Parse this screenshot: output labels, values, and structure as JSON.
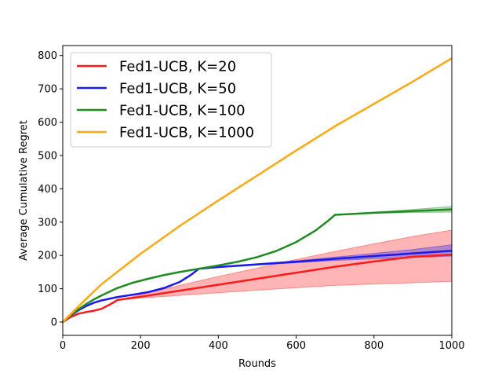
{
  "chart_data": {
    "type": "line",
    "title": "",
    "xlabel": "Rounds",
    "ylabel": "Average Cumulative Regret",
    "xlim": [
      0,
      1000
    ],
    "ylim": [
      -40,
      830
    ],
    "xticks": [
      0,
      200,
      400,
      600,
      800,
      1000
    ],
    "yticks": [
      0,
      100,
      200,
      300,
      400,
      500,
      600,
      700,
      800
    ],
    "grid": false,
    "legend_position": "upper-left",
    "series": [
      {
        "name": "Fed1-UCB, K=20",
        "color": "#ff1a1a",
        "x": [
          0,
          20,
          40,
          60,
          80,
          100,
          120,
          135,
          140,
          200,
          300,
          400,
          500,
          600,
          700,
          800,
          900,
          1000
        ],
        "y": [
          0,
          15,
          25,
          30,
          34,
          40,
          52,
          62,
          66,
          76,
          94,
          112,
          130,
          148,
          166,
          182,
          196,
          202
        ],
        "band_lower": [
          0,
          15,
          25,
          30,
          34,
          40,
          52,
          62,
          66,
          72,
          80,
          88,
          96,
          103,
          110,
          114,
          118,
          122
        ],
        "band_upper": [
          0,
          15,
          25,
          30,
          34,
          40,
          52,
          62,
          66,
          82,
          110,
          137,
          162,
          188,
          212,
          235,
          257,
          276
        ]
      },
      {
        "name": "Fed1-UCB, K=50",
        "color": "#1a1aee",
        "x": [
          0,
          20,
          40,
          60,
          80,
          100,
          140,
          180,
          220,
          260,
          300,
          330,
          350,
          400,
          500,
          600,
          700,
          800,
          900,
          1000
        ],
        "y": [
          0,
          20,
          35,
          48,
          58,
          65,
          75,
          82,
          90,
          102,
          120,
          142,
          160,
          165,
          173,
          181,
          190,
          198,
          206,
          214
        ],
        "band_lower": [
          0,
          20,
          35,
          48,
          58,
          65,
          75,
          82,
          90,
          102,
          120,
          142,
          160,
          164,
          171,
          178,
          185,
          190,
          194,
          198
        ],
        "band_upper": [
          0,
          20,
          35,
          48,
          58,
          65,
          75,
          82,
          90,
          102,
          120,
          142,
          160,
          166,
          175,
          184,
          195,
          206,
          218,
          232
        ]
      },
      {
        "name": "Fed1-UCB, K=100",
        "color": "#1e8c1e",
        "x": [
          0,
          20,
          40,
          60,
          80,
          100,
          140,
          180,
          220,
          260,
          300,
          350,
          400,
          450,
          500,
          550,
          600,
          650,
          680,
          700,
          750,
          800,
          900,
          1000
        ],
        "y": [
          0,
          20,
          38,
          54,
          68,
          80,
          102,
          118,
          130,
          141,
          150,
          160,
          170,
          181,
          195,
          214,
          240,
          275,
          302,
          322,
          325,
          328,
          333,
          338
        ],
        "band_lower": [
          0,
          20,
          38,
          54,
          68,
          80,
          102,
          118,
          130,
          141,
          150,
          160,
          170,
          181,
          195,
          214,
          240,
          275,
          302,
          322,
          324,
          326,
          329,
          330
        ],
        "band_upper": [
          0,
          20,
          38,
          54,
          68,
          80,
          102,
          118,
          130,
          141,
          150,
          160,
          170,
          181,
          195,
          214,
          240,
          275,
          302,
          322,
          326,
          330,
          338,
          347
        ]
      },
      {
        "name": "Fed1-UCB, K=1000",
        "color": "#ffa812",
        "x": [
          0,
          50,
          100,
          200,
          300,
          400,
          500,
          600,
          700,
          800,
          900,
          1000
        ],
        "y": [
          0,
          58,
          114,
          205,
          288,
          365,
          440,
          515,
          588,
          655,
          722,
          792
        ]
      }
    ]
  }
}
